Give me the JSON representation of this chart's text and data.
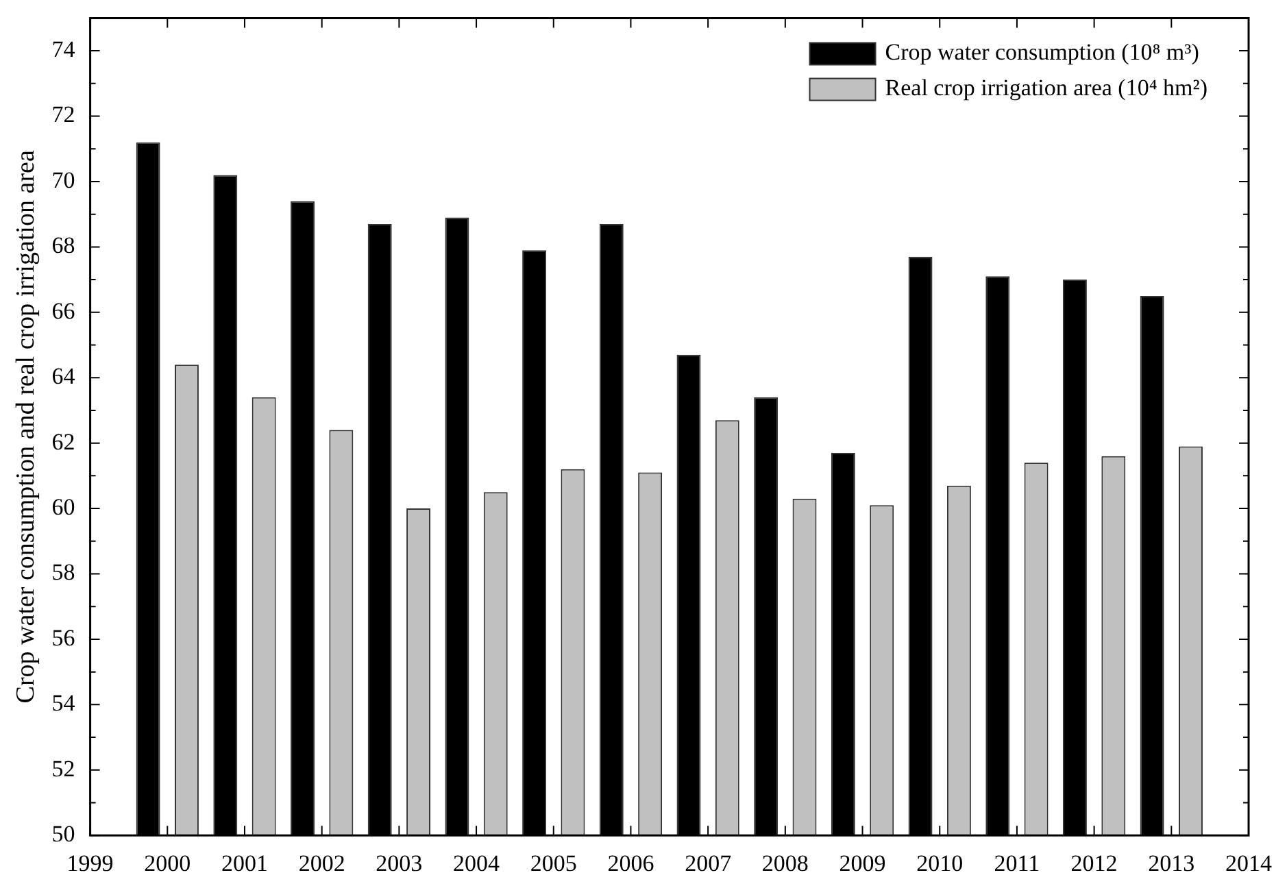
{
  "chart_data": {
    "type": "bar",
    "ylabel": "Crop water consumption and real crop irrigation area",
    "x": [
      2000,
      2001,
      2002,
      2003,
      2004,
      2005,
      2006,
      2007,
      2008,
      2009,
      2010,
      2011,
      2012,
      2013
    ],
    "series": [
      {
        "name": "Crop water consumption (10⁸ m³)",
        "color": "#000000",
        "values": [
          71.2,
          70.2,
          69.4,
          68.7,
          68.9,
          67.9,
          68.7,
          64.7,
          63.4,
          61.7,
          67.7,
          67.1,
          67.0,
          66.5
        ]
      },
      {
        "name": "Real crop irrigation area (10⁴ hm²)",
        "color": "#c0c0c0",
        "values": [
          64.4,
          63.4,
          62.4,
          60.0,
          60.5,
          61.2,
          61.1,
          62.7,
          60.3,
          60.1,
          60.7,
          61.4,
          61.6,
          61.9
        ]
      }
    ],
    "xlim": [
      1999,
      2014
    ],
    "xticks": [
      1999,
      2000,
      2001,
      2002,
      2003,
      2004,
      2005,
      2006,
      2007,
      2008,
      2009,
      2010,
      2011,
      2012,
      2013,
      2014
    ],
    "ylim": [
      50,
      75
    ],
    "yticks": [
      50,
      {
        "value": 51,
        "label": null
      },
      52,
      {
        "value": 53,
        "label": null
      },
      54,
      {
        "value": 55,
        "label": null
      },
      56,
      {
        "value": 57,
        "label": null
      },
      58,
      {
        "value": 59,
        "label": null
      },
      60,
      {
        "value": 61,
        "label": null
      },
      62,
      {
        "value": 63,
        "label": null
      },
      64,
      {
        "value": 65,
        "label": null
      },
      66,
      {
        "value": 67,
        "label": null
      },
      68,
      {
        "value": 69,
        "label": null
      },
      70,
      {
        "value": 71,
        "label": null
      },
      72,
      {
        "value": 73,
        "label": null
      },
      74
    ],
    "grid": false,
    "legend": "top right"
  }
}
